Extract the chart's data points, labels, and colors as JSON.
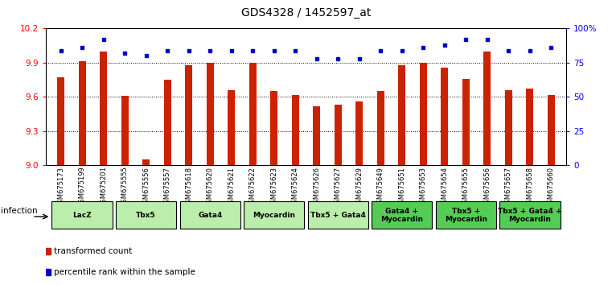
{
  "title": "GDS4328 / 1452597_at",
  "samples": [
    "GSM675173",
    "GSM675199",
    "GSM675201",
    "GSM675555",
    "GSM675556",
    "GSM675557",
    "GSM675618",
    "GSM675620",
    "GSM675621",
    "GSM675622",
    "GSM675623",
    "GSM675624",
    "GSM675626",
    "GSM675627",
    "GSM675629",
    "GSM675649",
    "GSM675651",
    "GSM675653",
    "GSM675654",
    "GSM675655",
    "GSM675656",
    "GSM675657",
    "GSM675658",
    "GSM675660"
  ],
  "bar_values": [
    9.77,
    9.91,
    10.0,
    9.61,
    9.05,
    9.75,
    9.88,
    9.9,
    9.66,
    9.9,
    9.65,
    9.62,
    9.52,
    9.53,
    9.56,
    9.65,
    9.88,
    9.9,
    9.86,
    9.76,
    10.0,
    9.66,
    9.67,
    9.62
  ],
  "percentile_values": [
    84,
    86,
    92,
    82,
    80,
    84,
    84,
    84,
    84,
    84,
    84,
    84,
    78,
    78,
    78,
    84,
    84,
    86,
    88,
    92,
    92,
    84,
    84,
    86
  ],
  "groups": [
    {
      "label": "LacZ",
      "start": 0,
      "end": 2,
      "color": "#bbeeaa"
    },
    {
      "label": "Tbx5",
      "start": 3,
      "end": 5,
      "color": "#bbeeaa"
    },
    {
      "label": "Gata4",
      "start": 6,
      "end": 8,
      "color": "#bbeeaa"
    },
    {
      "label": "Myocardin",
      "start": 9,
      "end": 11,
      "color": "#bbeeaa"
    },
    {
      "label": "Tbx5 + Gata4",
      "start": 12,
      "end": 14,
      "color": "#bbeeaa"
    },
    {
      "label": "Gata4 +\nMyocardin",
      "start": 15,
      "end": 17,
      "color": "#55cc55"
    },
    {
      "label": "Tbx5 +\nMyocardin",
      "start": 18,
      "end": 20,
      "color": "#55cc55"
    },
    {
      "label": "Tbx5 + Gata4 +\nMyocardin",
      "start": 21,
      "end": 23,
      "color": "#55cc55"
    }
  ],
  "ylim_left": [
    9.0,
    10.2
  ],
  "ylim_right": [
    0,
    100
  ],
  "yticks_left": [
    9.0,
    9.3,
    9.6,
    9.9,
    10.2
  ],
  "yticks_right": [
    0,
    25,
    50,
    75,
    100
  ],
  "bar_color": "#cc2200",
  "dot_color": "#0000cc",
  "grid_lines": [
    9.3,
    9.6,
    9.9
  ],
  "infection_label": "infection"
}
